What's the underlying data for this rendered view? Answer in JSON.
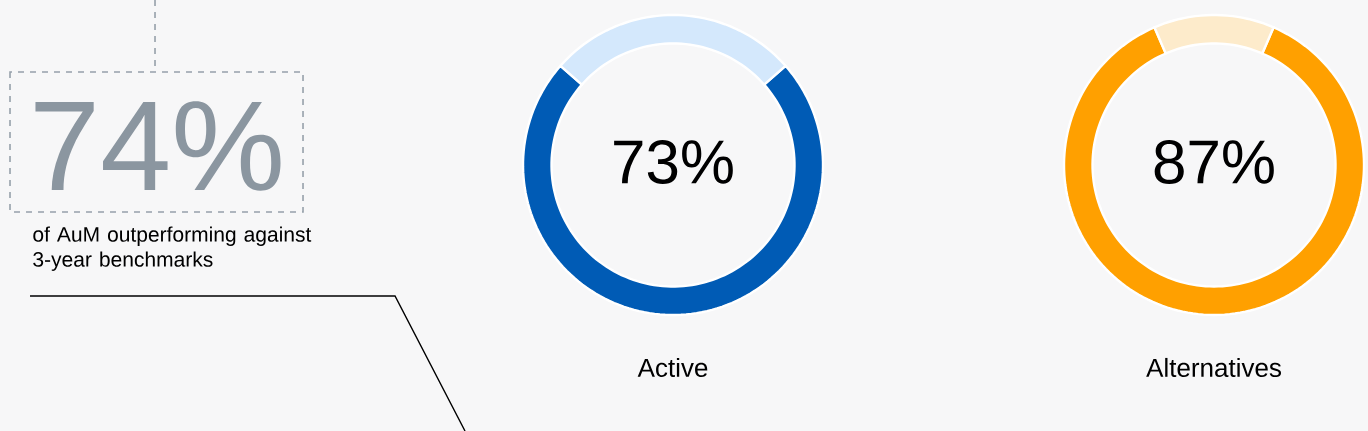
{
  "chart_data": [
    {
      "type": "other",
      "annotations": [
        "74%",
        "of AuM outperforming against 3-year benchmarks"
      ]
    },
    {
      "type": "donut",
      "title": "Active",
      "categories": [
        null,
        null
      ],
      "values": [
        73,
        27
      ],
      "colors": [
        "#005bb5",
        "#d4e8fc"
      ],
      "annotations": [
        "73%"
      ]
    },
    {
      "type": "donut",
      "title": "Alternatives",
      "categories": [
        null,
        null
      ],
      "values": [
        87,
        13
      ],
      "colors": [
        "#ffa000",
        "#fdebcb"
      ],
      "annotations": [
        "87%"
      ]
    }
  ]
}
